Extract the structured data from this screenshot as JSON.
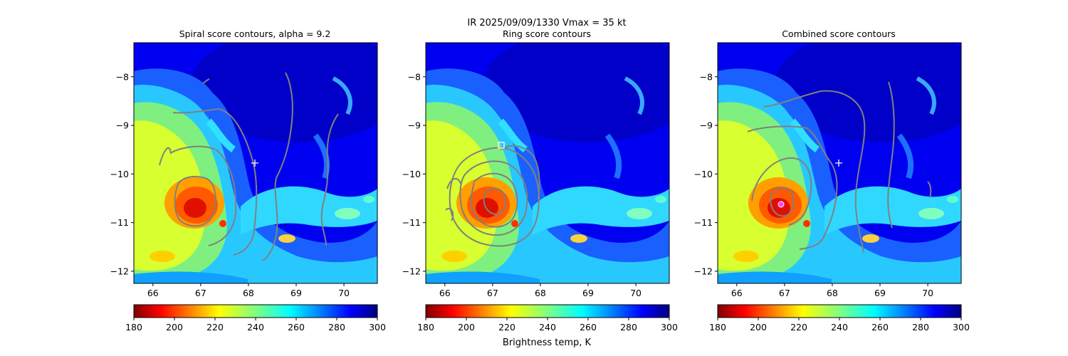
{
  "suptitle_line1": "IR  2025/09/09/1330    Vmax = 35 kt",
  "colorbar_label": "Brightness temp, K",
  "colorbar": {
    "min": 180,
    "max": 300,
    "ticks": [
      180,
      200,
      220,
      240,
      260,
      280,
      300
    ],
    "tick_labels": [
      "180",
      "200",
      "220",
      "240",
      "260",
      "280",
      "300"
    ],
    "colormap": "jet_r"
  },
  "chart_data": [
    {
      "type": "heatmap",
      "title": "Spiral score contours, alpha =  9.2",
      "xlim": [
        65.6,
        70.7
      ],
      "ylim": [
        -12.25,
        -7.3
      ],
      "xticks": [
        66,
        67,
        68,
        69,
        70
      ],
      "xtick_labels": [
        "66",
        "67",
        "68",
        "69",
        "70"
      ],
      "yticks": [
        -8,
        -9,
        -10,
        -11,
        -12
      ],
      "ytick_labels": [
        "−8",
        "−9",
        "−10",
        "−11",
        "−12"
      ],
      "overlay": "contours",
      "contour_color": "#808080",
      "markers": [
        {
          "type": "plus",
          "x": 68.12,
          "y": -9.77,
          "color": "#ffffff"
        }
      ]
    },
    {
      "type": "heatmap",
      "title": "Ring score contours",
      "xlim": [
        65.6,
        70.7
      ],
      "ylim": [
        -12.25,
        -7.3
      ],
      "xticks": [
        66,
        67,
        68,
        69,
        70
      ],
      "xtick_labels": [
        "66",
        "67",
        "68",
        "69",
        "70"
      ],
      "yticks": [
        -8,
        -9,
        -10,
        -11,
        -12
      ],
      "ytick_labels": [
        "−8",
        "−9",
        "−10",
        "−11",
        "−12"
      ],
      "overlay": "contours",
      "contour_color": "#808080",
      "markers": [
        {
          "type": "square",
          "x": 67.17,
          "y": -9.4,
          "color": "#ffffff"
        }
      ]
    },
    {
      "type": "heatmap",
      "title": "Combined score contours",
      "xlim": [
        65.6,
        70.7
      ],
      "ylim": [
        -12.25,
        -7.3
      ],
      "xticks": [
        66,
        67,
        68,
        69,
        70
      ],
      "xtick_labels": [
        "66",
        "67",
        "68",
        "69",
        "70"
      ],
      "yticks": [
        -8,
        -9,
        -10,
        -11,
        -12
      ],
      "ytick_labels": [
        "−8",
        "−9",
        "−10",
        "−11",
        "−12"
      ],
      "overlay": "contours",
      "contour_color": "#808080",
      "markers": [
        {
          "type": "plus",
          "x": 68.12,
          "y": -9.77,
          "color": "#ffffff"
        },
        {
          "type": "circle",
          "x": 66.9,
          "y": -10.63,
          "color": "#ff00ff"
        }
      ]
    }
  ]
}
